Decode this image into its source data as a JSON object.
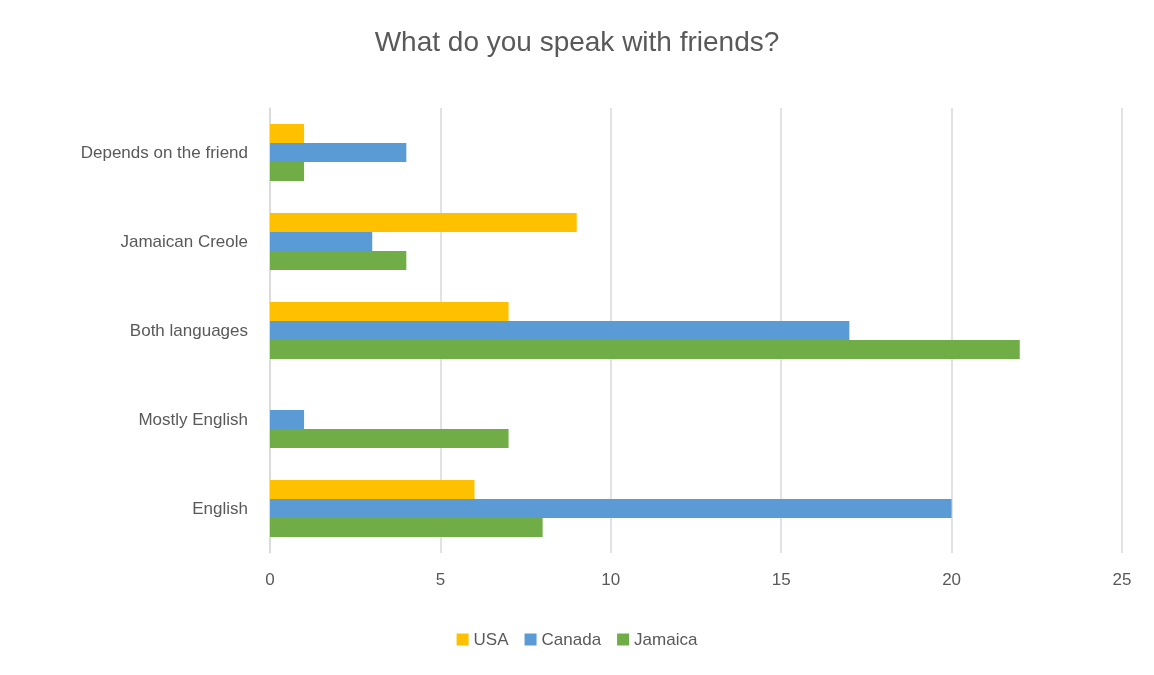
{
  "chart_data": {
    "type": "bar",
    "orientation": "horizontal",
    "title": "What do you speak with friends?",
    "categories": [
      "Depends on the friend",
      "Jamaican Creole",
      "Both languages",
      "Mostly English",
      "English"
    ],
    "series": [
      {
        "name": "USA",
        "color": "#ffc000",
        "values": [
          1,
          9,
          7,
          0,
          6
        ]
      },
      {
        "name": "Canada",
        "color": "#5b9bd5",
        "values": [
          4,
          3,
          17,
          1,
          20
        ]
      },
      {
        "name": "Jamaica",
        "color": "#70ad47",
        "values": [
          1,
          4,
          22,
          7,
          8
        ]
      }
    ],
    "xlim": [
      0,
      25
    ],
    "xticks": [
      0,
      5,
      10,
      15,
      20,
      25
    ],
    "grid": "x",
    "legend": "bottom"
  }
}
